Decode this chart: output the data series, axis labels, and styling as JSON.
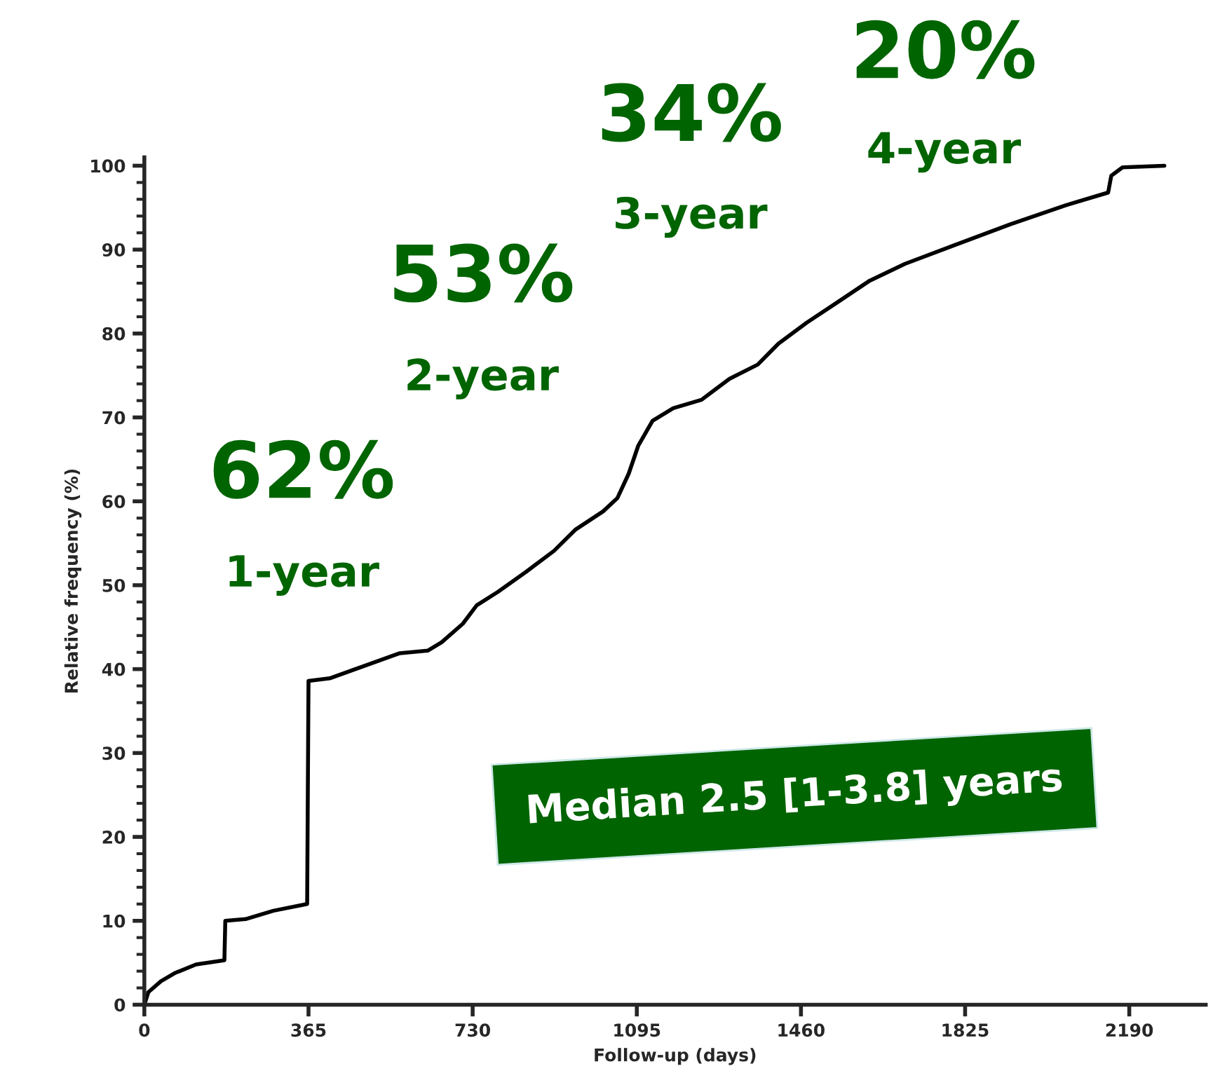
{
  "chart_data": {
    "type": "line",
    "xlabel": "Follow-up (days)",
    "ylabel": "Relative frequency (%)",
    "x": [
      0,
      9,
      37,
      69,
      115,
      178,
      180,
      225,
      287,
      362,
      365,
      412,
      490,
      568,
      630,
      661,
      708,
      739,
      786,
      849,
      911,
      958,
      1020,
      1052,
      1077,
      1098,
      1130,
      1176,
      1239,
      1301,
      1364,
      1410,
      1473,
      1535,
      1613,
      1691,
      1800,
      1925,
      2050,
      2143,
      2150,
      2175,
      2268
    ],
    "series": [
      {
        "color": "#000000",
        "values": [
          0,
          1.5,
          2.8,
          3.8,
          4.8,
          5.3,
          10,
          10.2,
          11.2,
          12,
          38.6,
          38.9,
          40.4,
          41.9,
          42.2,
          43.2,
          45.4,
          47.6,
          49.2,
          51.6,
          54.1,
          56.6,
          58.8,
          60.4,
          63.3,
          66.6,
          69.6,
          71.1,
          72.1,
          74.6,
          76.3,
          78.8,
          81.3,
          83.5,
          86.3,
          88.3,
          90.5,
          93,
          95.3,
          96.8,
          98.8,
          99.8,
          100
        ]
      }
    ],
    "xlim": [
      0,
      2360
    ],
    "ylim": [
      0,
      101
    ],
    "xticks": [
      0,
      365,
      730,
      1095,
      1460,
      1825,
      2190
    ],
    "yticks": [
      0,
      10,
      20,
      30,
      40,
      50,
      60,
      70,
      80,
      90,
      100
    ],
    "grid": false,
    "marker": "none",
    "line_style": "solid",
    "annotations": [
      "62%",
      "1-year",
      "53%",
      "2-year",
      "34%",
      "3-year",
      "20%",
      "4-year",
      "Median 2.5 [1-3.8] years"
    ]
  }
}
